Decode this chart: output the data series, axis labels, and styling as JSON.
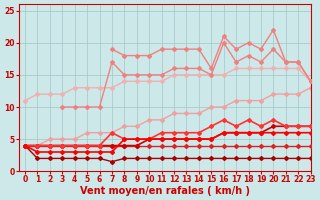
{
  "x": [
    0,
    1,
    2,
    3,
    4,
    5,
    6,
    7,
    8,
    9,
    10,
    11,
    12,
    13,
    14,
    15,
    16,
    17,
    18,
    19,
    20,
    21,
    22,
    23
  ],
  "lines": [
    {
      "y": [
        11,
        12,
        12,
        12,
        13,
        13,
        13,
        13,
        14,
        14,
        14,
        14,
        15,
        15,
        15,
        15,
        15,
        16,
        16,
        16,
        16,
        16,
        16,
        14
      ],
      "color": "#f0b0b0",
      "marker": "D",
      "markersize": 2,
      "linewidth": 1.0,
      "zorder": 2
    },
    {
      "y": [
        null,
        null,
        null,
        null,
        null,
        null,
        null,
        19,
        18,
        18,
        18,
        19,
        19,
        19,
        19,
        16,
        21,
        19,
        20,
        19,
        22,
        17,
        17,
        14
      ],
      "color": "#f08080",
      "marker": "D",
      "markersize": 2,
      "linewidth": 1.0,
      "zorder": 3
    },
    {
      "y": [
        null,
        null,
        null,
        10,
        10,
        10,
        10,
        17,
        15,
        15,
        15,
        15,
        16,
        16,
        16,
        15,
        20,
        17,
        18,
        17,
        19,
        17,
        17,
        14
      ],
      "color": "#f08080",
      "marker": "D",
      "markersize": 2,
      "linewidth": 1.0,
      "zorder": 3
    },
    {
      "y": [
        4,
        4,
        5,
        5,
        5,
        6,
        6,
        6,
        7,
        7,
        8,
        8,
        9,
        9,
        9,
        10,
        10,
        11,
        11,
        11,
        12,
        12,
        12,
        13
      ],
      "color": "#f0a0a0",
      "marker": "D",
      "markersize": 2,
      "linewidth": 1.0,
      "zorder": 2
    },
    {
      "y": [
        4,
        4,
        4,
        4,
        4,
        4,
        4,
        6,
        5,
        5,
        5,
        6,
        6,
        6,
        6,
        7,
        8,
        7,
        8,
        7,
        8,
        7,
        7,
        7
      ],
      "color": "#ff3333",
      "marker": "D",
      "markersize": 2,
      "linewidth": 1.2,
      "zorder": 5
    },
    {
      "y": [
        4,
        3,
        3,
        3,
        3,
        3,
        3,
        3,
        5,
        5,
        5,
        5,
        5,
        5,
        5,
        5,
        6,
        6,
        6,
        6,
        6,
        6,
        6,
        6
      ],
      "color": "#ff0000",
      "marker": "D",
      "markersize": 2,
      "linewidth": 1.2,
      "zorder": 5
    },
    {
      "y": [
        4,
        4,
        4,
        4,
        4,
        4,
        4,
        4,
        4,
        4,
        5,
        5,
        5,
        5,
        5,
        5,
        6,
        6,
        6,
        6,
        7,
        7,
        7,
        7
      ],
      "color": "#cc0000",
      "marker": "D",
      "markersize": 2,
      "linewidth": 1.2,
      "zorder": 4
    },
    {
      "y": [
        4,
        2,
        2,
        2,
        2,
        2,
        2,
        1.5,
        2,
        2,
        2,
        2,
        2,
        2,
        2,
        2,
        2,
        2,
        2,
        2,
        2,
        2,
        2,
        2
      ],
      "color": "#aa0000",
      "marker": "D",
      "markersize": 2,
      "linewidth": 1.0,
      "zorder": 3
    },
    {
      "y": [
        4,
        4,
        4,
        4,
        4,
        4,
        4,
        4,
        4,
        4,
        4,
        4,
        4,
        4,
        4,
        4,
        4,
        4,
        4,
        4,
        4,
        4,
        4,
        4
      ],
      "color": "#dd2222",
      "marker": "D",
      "markersize": 2,
      "linewidth": 1.0,
      "zorder": 3
    }
  ],
  "xlabel": "Vent moyen/en rafales ( km/h )",
  "xlim": [
    -0.5,
    23
  ],
  "ylim": [
    0,
    26
  ],
  "yticks": [
    0,
    5,
    10,
    15,
    20,
    25
  ],
  "xticks": [
    0,
    1,
    2,
    3,
    4,
    5,
    6,
    7,
    8,
    9,
    10,
    11,
    12,
    13,
    14,
    15,
    16,
    17,
    18,
    19,
    20,
    21,
    22,
    23
  ],
  "bg_color": "#cce8e8",
  "grid_color": "#aacccc",
  "tick_color": "#cc0000",
  "label_color": "#cc0000",
  "xlabel_fontsize": 7,
  "tick_fontsize": 5.5,
  "figsize": [
    3.2,
    2.0
  ],
  "dpi": 100
}
